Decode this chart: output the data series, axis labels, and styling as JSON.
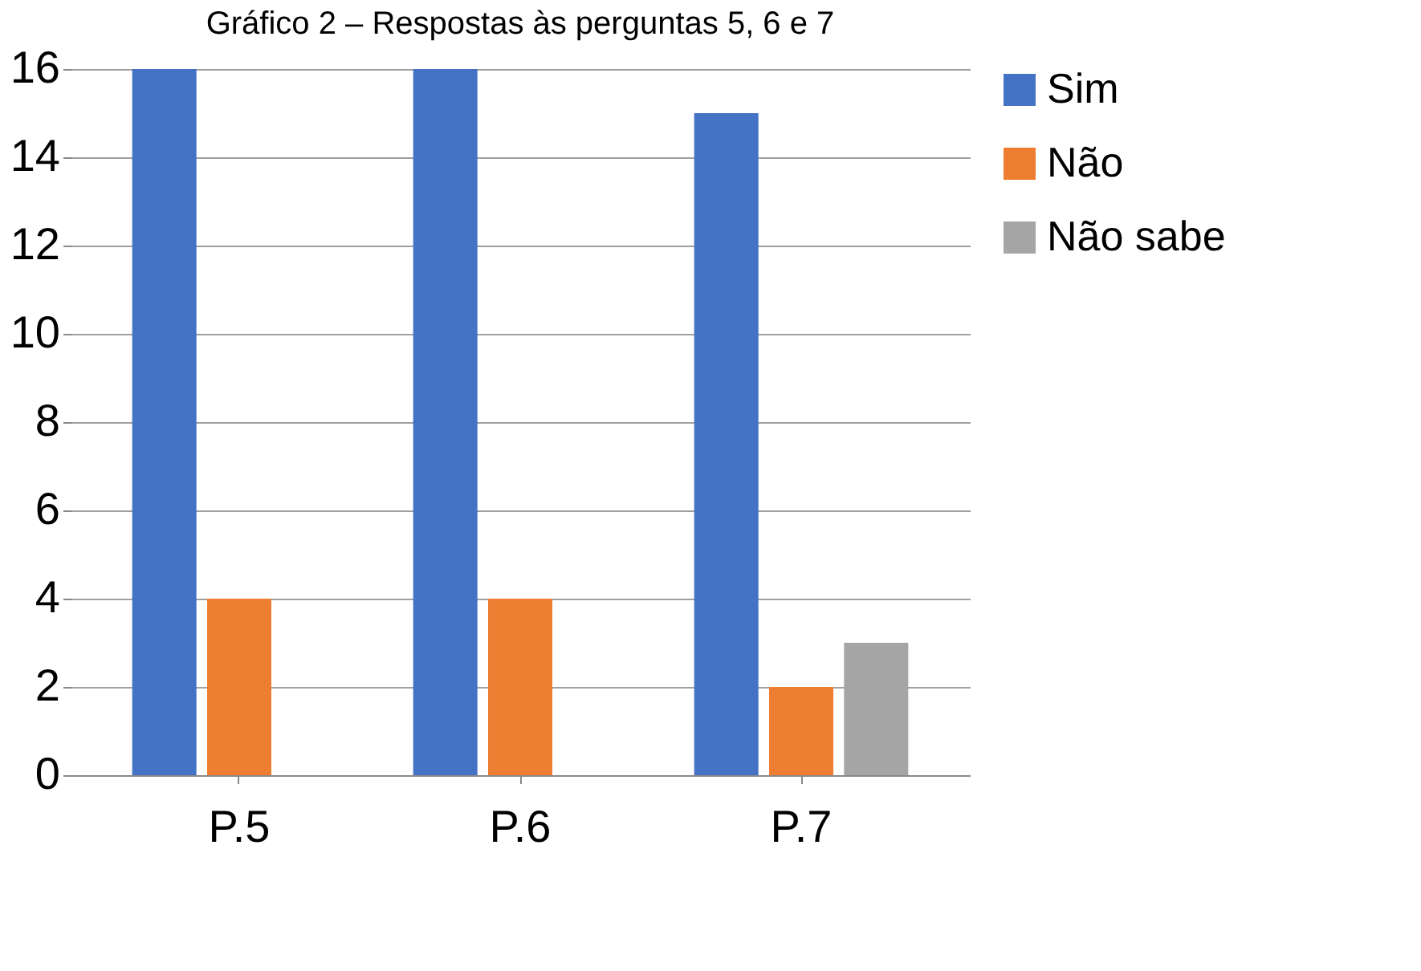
{
  "chart_data": {
    "type": "bar",
    "title": "Gráfico 2 – Respostas às perguntas 5, 6 e 7",
    "categories": [
      "P.5",
      "P.6",
      "P.7"
    ],
    "series": [
      {
        "name": "Sim",
        "color": "#4472c4",
        "values": [
          16,
          16,
          15
        ]
      },
      {
        "name": "Não",
        "color": "#ed7d31",
        "values": [
          4,
          4,
          2
        ]
      },
      {
        "name": "Não sabe",
        "color": "#a5a5a5",
        "values": [
          0,
          0,
          3
        ]
      }
    ],
    "ylim": [
      0,
      16
    ],
    "yticks": [
      0,
      2,
      4,
      6,
      8,
      10,
      12,
      14,
      16
    ],
    "grid": "y",
    "legend": "right"
  }
}
